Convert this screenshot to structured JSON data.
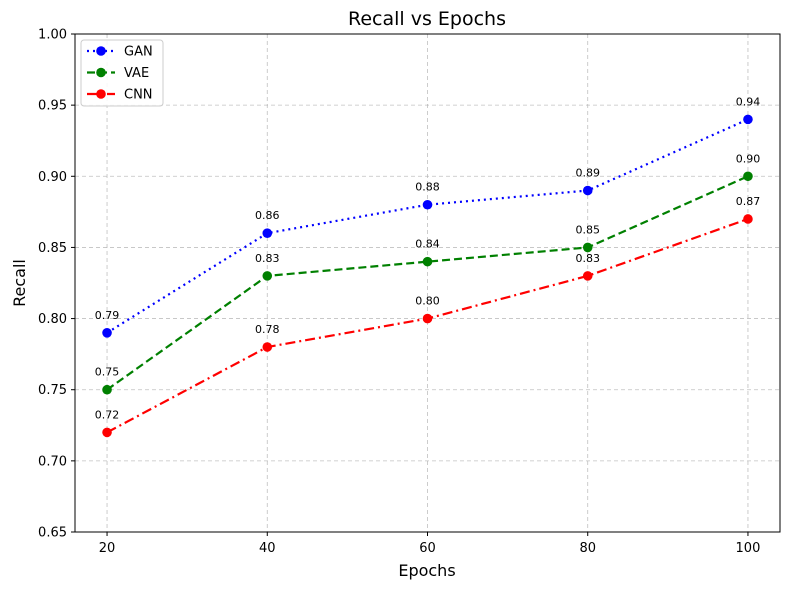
{
  "chart_data": {
    "type": "line",
    "title": "Recall vs Epochs",
    "xlabel": "Epochs",
    "ylabel": "Recall",
    "x": [
      20,
      40,
      60,
      80,
      100
    ],
    "xticks": [
      "20",
      "40",
      "60",
      "80",
      "100"
    ],
    "yticks": [
      "0.65",
      "0.70",
      "0.75",
      "0.80",
      "0.85",
      "0.90",
      "0.95",
      "1.00"
    ],
    "ylim": [
      0.65,
      1.0
    ],
    "xlim": [
      16,
      104
    ],
    "grid": true,
    "legend_position": "top-left",
    "series": [
      {
        "name": "GAN",
        "values": [
          0.79,
          0.86,
          0.88,
          0.89,
          0.94
        ],
        "labels": [
          "0.79",
          "0.86",
          "0.88",
          "0.89",
          "0.94"
        ],
        "color": "#0000ff",
        "linestyle": "dotted"
      },
      {
        "name": "VAE",
        "values": [
          0.75,
          0.83,
          0.84,
          0.85,
          0.9
        ],
        "labels": [
          "0.75",
          "0.83",
          "0.84",
          "0.85",
          "0.90"
        ],
        "color": "#008000",
        "linestyle": "dashed"
      },
      {
        "name": "CNN",
        "values": [
          0.72,
          0.78,
          0.8,
          0.83,
          0.87
        ],
        "labels": [
          "0.72",
          "0.78",
          "0.80",
          "0.83",
          "0.87"
        ],
        "color": "#ff0000",
        "linestyle": "dashdot"
      }
    ]
  }
}
